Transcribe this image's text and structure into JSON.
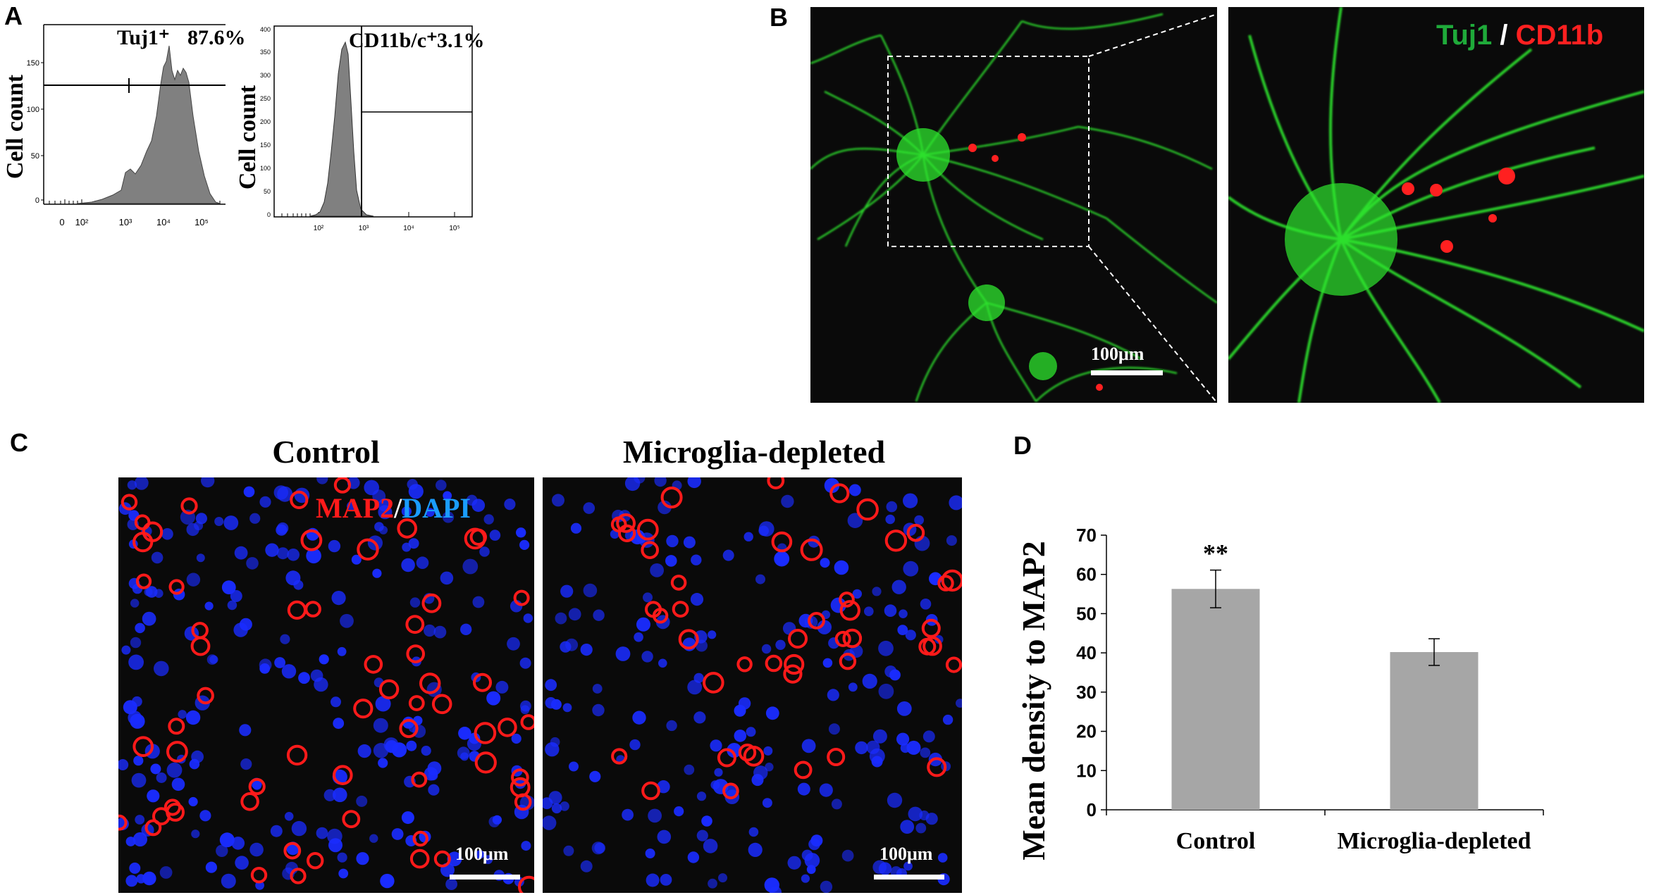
{
  "panels": {
    "a": {
      "letter": "A",
      "histogram1": {
        "ylabel": "Cell count",
        "gate_label": "Tuj1⁺",
        "percent": "87.6%",
        "y_ticks": [
          "0",
          "50",
          "100",
          "150"
        ],
        "x_ticks": [
          "0",
          "10²",
          "10³",
          "10⁴",
          "10⁵"
        ]
      },
      "histogram2": {
        "ylabel": "Cell count",
        "gate_label": "CD11b/c⁺",
        "percent": "3.1%",
        "y_ticks": [
          "0",
          "50",
          "100",
          "150",
          "200",
          "250",
          "300",
          "350",
          "400"
        ],
        "x_ticks": [
          "10²",
          "10³",
          "10⁴",
          "10⁵"
        ]
      }
    },
    "b": {
      "letter": "B",
      "scalebar": "100μm",
      "legend_green": "Tuj1",
      "legend_sep": "/",
      "legend_red": "CD11b"
    },
    "c": {
      "letter": "C",
      "control_title": "Control",
      "depleted_title": "Microglia-depleted",
      "legend_red": "MAP2",
      "legend_sep": "/",
      "legend_blue": "DAPI",
      "scalebar_left": "100μm",
      "scalebar_right": "100μm"
    },
    "d": {
      "letter": "D"
    }
  },
  "chart_data": {
    "type": "bar",
    "categories": [
      "Control",
      "Microglia-depleted"
    ],
    "values": [
      56.3,
      40.2
    ],
    "errors": [
      4.8,
      3.4
    ],
    "ylabel": "Mean density to MAP2",
    "ylim": [
      0,
      70
    ],
    "yticks": [
      "0",
      "10",
      "20",
      "30",
      "40",
      "50",
      "60",
      "70"
    ],
    "annotations": [
      "**"
    ],
    "grid": false,
    "bar_color": "#a6a6a6"
  },
  "colors": {
    "neuron_green": "#2ee62e",
    "microglia_red": "#ff2020",
    "dapi_blue": "#1a2cff",
    "map2_red": "#ff1a1a",
    "histogram_fill": "#808080"
  }
}
